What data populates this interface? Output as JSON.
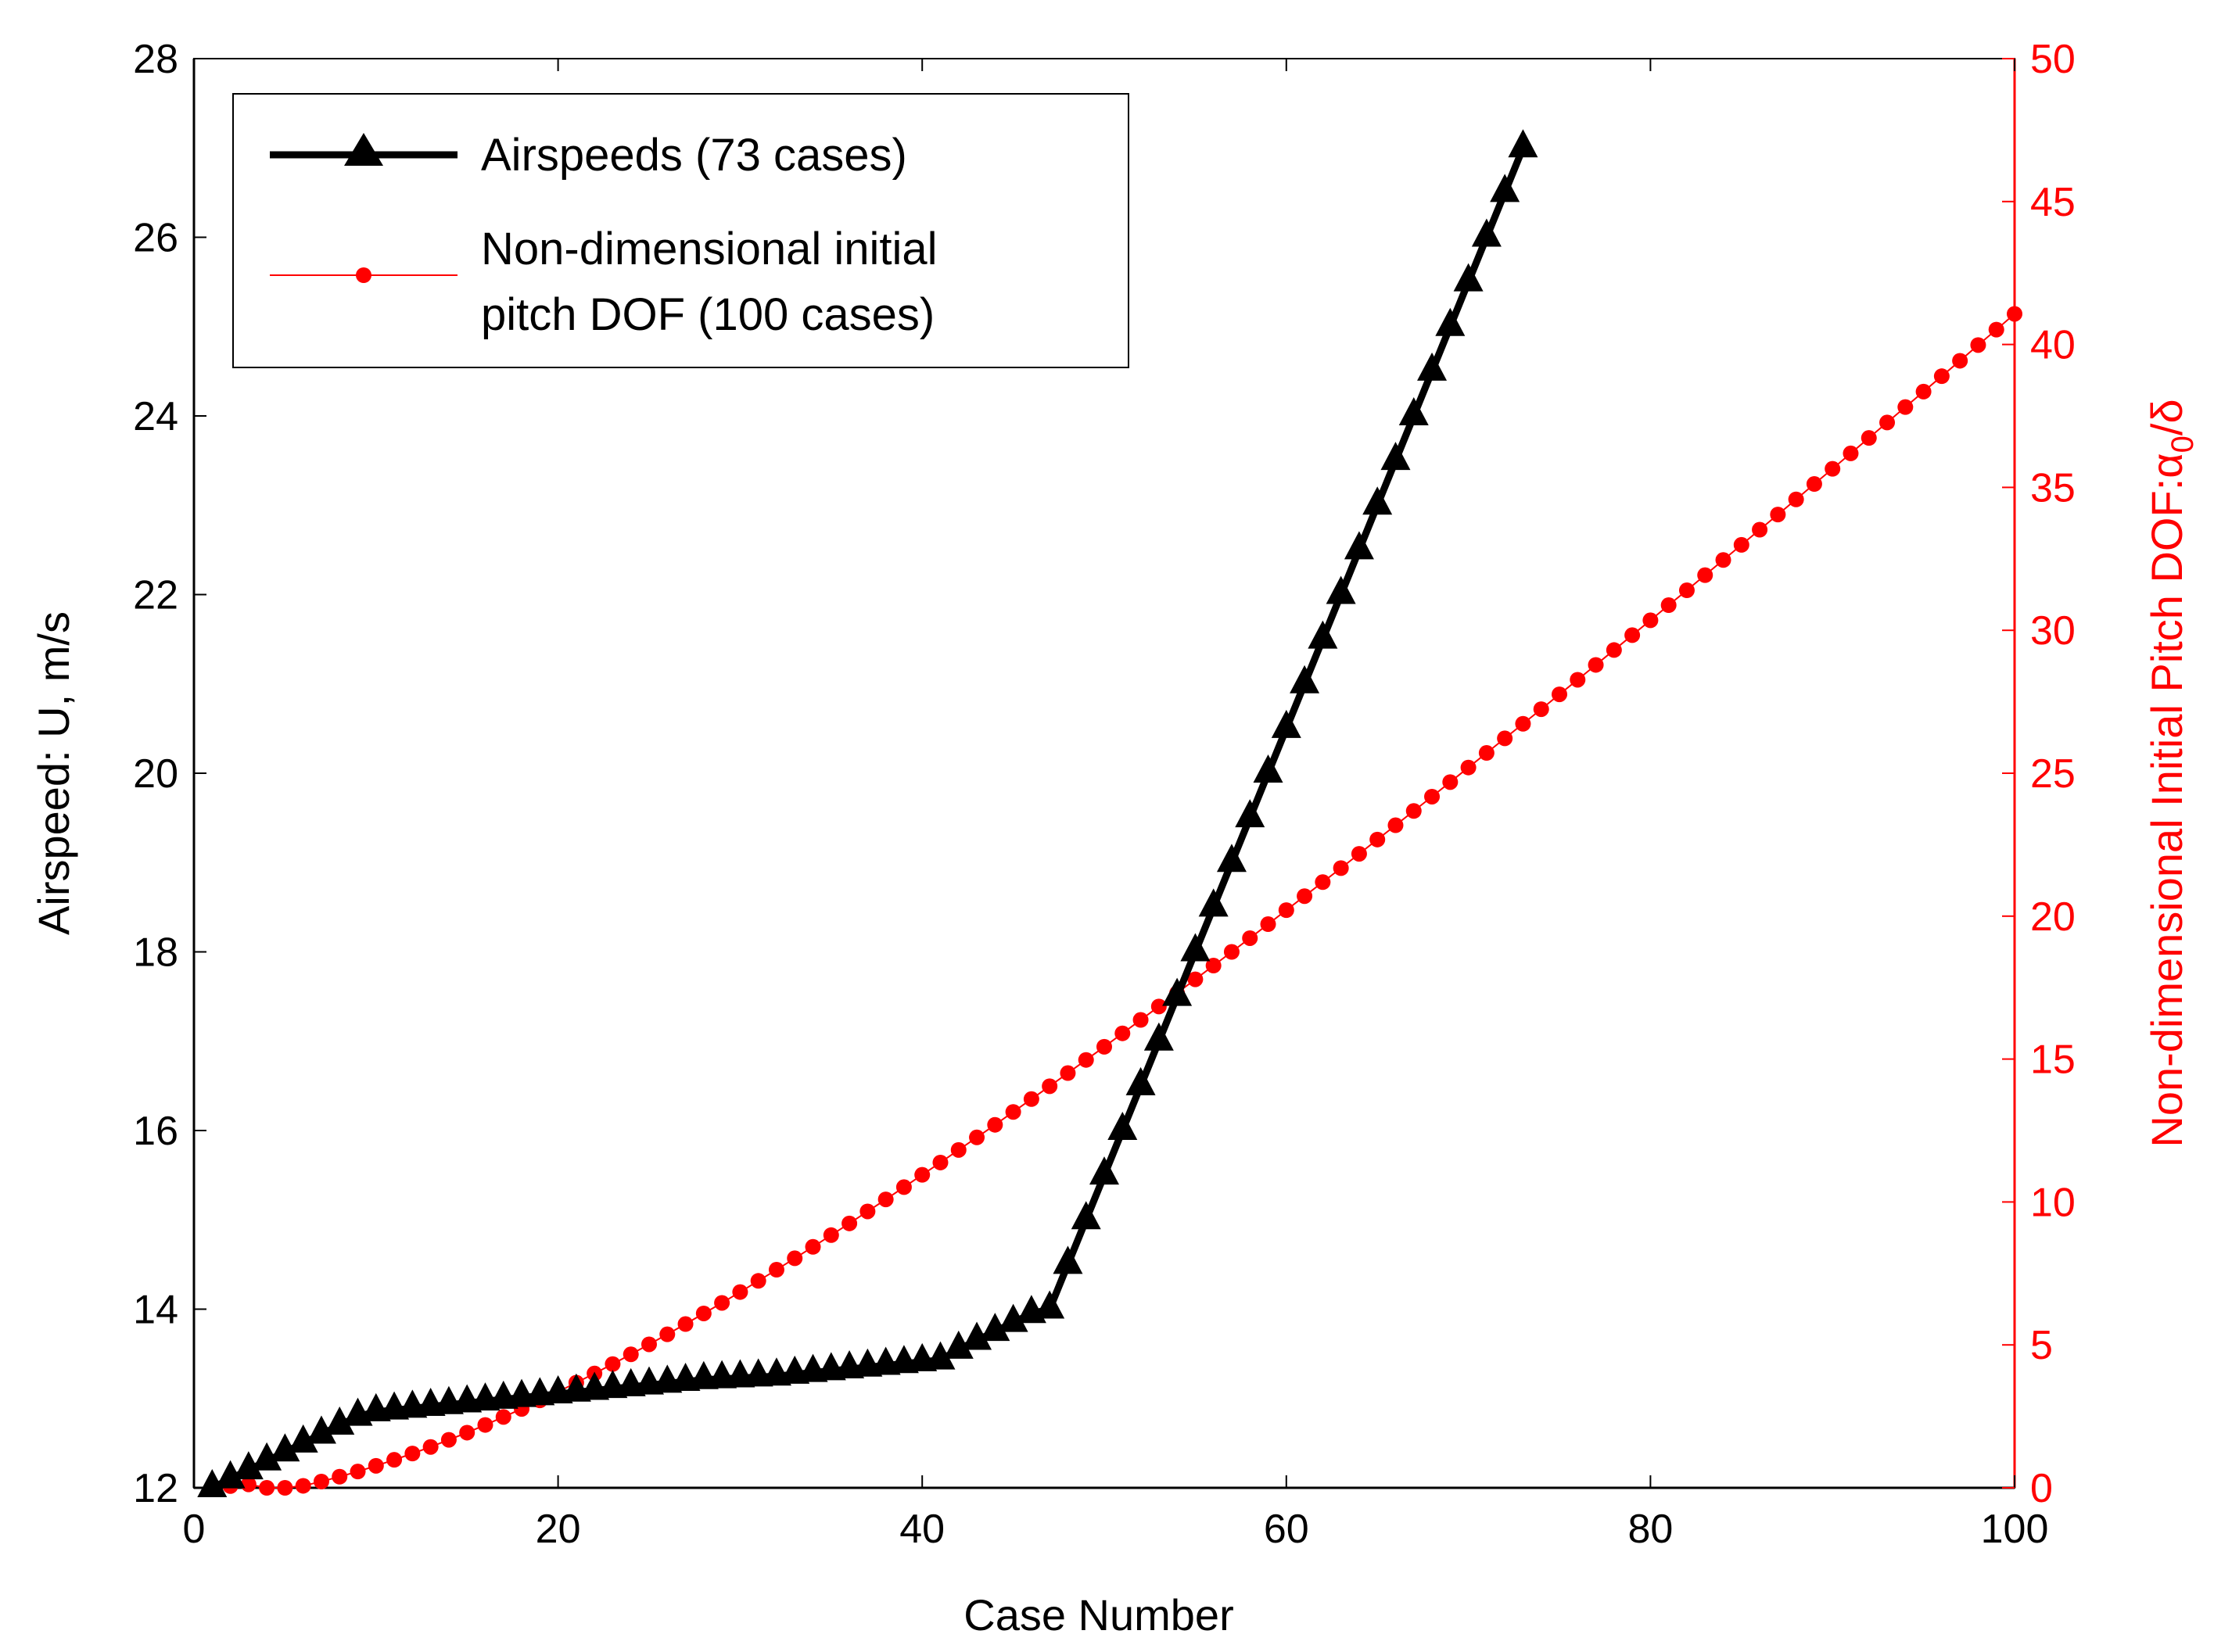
{
  "chart_data": {
    "type": "line",
    "x_axis": {
      "label": "Case Number",
      "range": [
        0,
        100
      ],
      "ticks": [
        "0",
        "20",
        "40",
        "60",
        "80",
        "100"
      ]
    },
    "y_left_axis": {
      "label": "Airspeed: U, m/s",
      "range": [
        12,
        28
      ],
      "ticks": [
        "12",
        "14",
        "16",
        "18",
        "20",
        "22",
        "24",
        "26",
        "28"
      ]
    },
    "y_right_axis": {
      "label_text": "Non-dimensional Initial Pitch DOF:",
      "label_symbol_alpha": "α",
      "label_symbol_sub": "0",
      "label_symbol_rest": "/δ",
      "range": [
        0,
        50
      ],
      "ticks": [
        "0",
        "5",
        "10",
        "15",
        "20",
        "25",
        "30",
        "35",
        "40",
        "45",
        "50"
      ],
      "color": "#ff0000"
    },
    "series": [
      {
        "name": "Airspeeds (73 cases)",
        "axis": "left",
        "color": "#000000",
        "marker": "triangle",
        "x": [
          1,
          2,
          3,
          4,
          5,
          6,
          7,
          8,
          9,
          10,
          11,
          12,
          13,
          14,
          15,
          16,
          17,
          18,
          19,
          20,
          21,
          22,
          23,
          24,
          25,
          26,
          27,
          28,
          29,
          30,
          31,
          32,
          33,
          34,
          35,
          36,
          37,
          38,
          39,
          40,
          41,
          42,
          43,
          44,
          45,
          46,
          47,
          48,
          49,
          50,
          51,
          52,
          53,
          54,
          55,
          56,
          57,
          58,
          59,
          60,
          61,
          62,
          63,
          64,
          65,
          66,
          67,
          68,
          69,
          70,
          71,
          72,
          73
        ],
        "values": [
          12.0,
          12.1,
          12.2,
          12.3,
          12.4,
          12.5,
          12.6,
          12.7,
          12.8,
          12.85,
          12.87,
          12.89,
          12.91,
          12.93,
          12.95,
          12.97,
          12.99,
          13.01,
          13.03,
          13.05,
          13.07,
          13.09,
          13.11,
          13.13,
          13.15,
          13.17,
          13.19,
          13.21,
          13.22,
          13.23,
          13.24,
          13.25,
          13.27,
          13.29,
          13.31,
          13.33,
          13.35,
          13.37,
          13.39,
          13.41,
          13.43,
          13.55,
          13.65,
          13.75,
          13.85,
          13.95,
          14.0,
          14.5,
          15.0,
          15.5,
          16.0,
          16.5,
          17.0,
          17.5,
          18.0,
          18.5,
          19.0,
          19.5,
          20.0,
          20.5,
          21.0,
          21.5,
          22.0,
          22.5,
          23.0,
          23.5,
          24.0,
          24.5,
          25.0,
          25.5,
          26.0,
          26.5,
          27.0
        ]
      },
      {
        "name_line1": "Non-dimensional initial",
        "name_line2": "pitch DOF (100 cases)",
        "axis": "right",
        "color": "#ff0000",
        "marker": "circle",
        "x_start": 1,
        "x_end": 100,
        "values": [
          0.0,
          0.06,
          0.12,
          0.0,
          0.0,
          0.07,
          0.22,
          0.39,
          0.57,
          0.77,
          0.98,
          1.2,
          1.43,
          1.68,
          1.93,
          2.2,
          2.48,
          2.76,
          3.06,
          3.36,
          3.68,
          4.0,
          4.33,
          4.67,
          5.02,
          5.37,
          5.73,
          6.1,
          6.47,
          6.85,
          7.24,
          7.63,
          8.03,
          8.43,
          8.84,
          9.25,
          9.67,
          10.09,
          10.52,
          10.95,
          11.38,
          11.82,
          12.26,
          12.7,
          13.15,
          13.6,
          14.05,
          14.51,
          14.97,
          15.43,
          15.9,
          16.37,
          16.84,
          17.31,
          17.79,
          18.27,
          18.75,
          19.23,
          19.72,
          20.21,
          20.7,
          21.19,
          21.68,
          22.18,
          22.68,
          23.18,
          23.68,
          24.18,
          24.69,
          25.2,
          25.71,
          26.22,
          26.73,
          27.24,
          27.76,
          28.27,
          28.79,
          29.31,
          29.83,
          30.35,
          30.88,
          31.4,
          31.93,
          32.46,
          32.99,
          33.52,
          34.05,
          34.58,
          35.12,
          35.65,
          36.19,
          36.73,
          37.27,
          37.81,
          38.35,
          38.89,
          39.43,
          39.98,
          40.52,
          41.07
        ]
      }
    ]
  }
}
